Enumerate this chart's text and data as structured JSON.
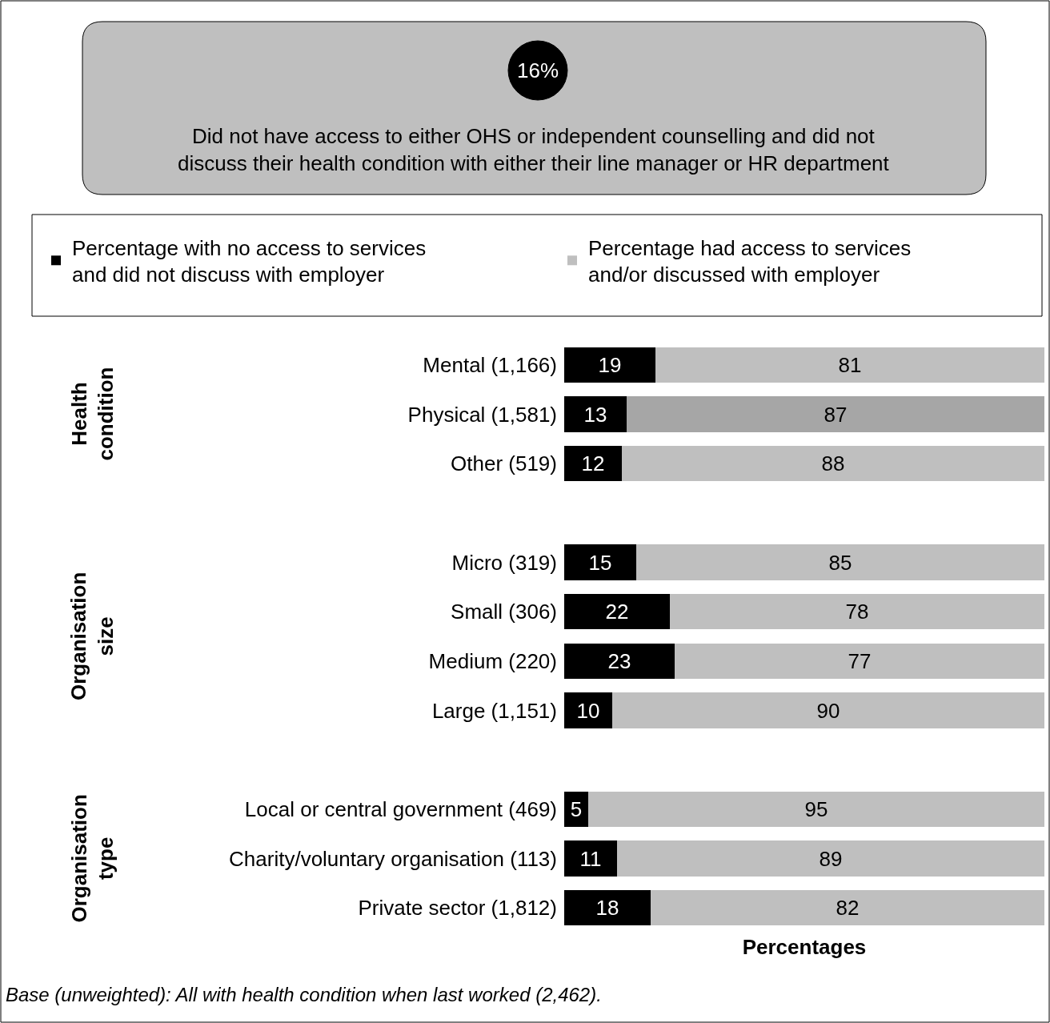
{
  "chart_data": {
    "type": "bar",
    "orientation": "horizontal",
    "stacked": true,
    "data_labels": true,
    "legend": "top",
    "tick_labels": "y",
    "xlabel": "Percentages",
    "xlim": [
      0,
      100
    ],
    "categories": [
      "Mental (1,166)",
      "Physical (1,581)",
      "Other (519)",
      null,
      "Micro (319)",
      "Small (306)",
      "Medium (220)",
      "Large (1,151)",
      null,
      "Local or central government (469)",
      "Charity/voluntary organisation (113)",
      "Private sector (1,812)"
    ],
    "series": [
      {
        "name": "Percentage with no access to services and did not discuss with employer",
        "color": "#000000",
        "values": [
          19,
          13,
          12,
          null,
          15,
          22,
          23,
          10,
          null,
          5,
          11,
          18
        ]
      },
      {
        "name": "Percentage had access to services and/or discussed with employer",
        "color": "#bfbfbf",
        "colors": [
          "#bfbfbf",
          "#a6a6a6",
          "#bfbfbf",
          null,
          "#bfbfbf",
          "#bfbfbf",
          "#bfbfbf",
          "#bfbfbf",
          null,
          "#bfbfbf",
          "#bfbfbf",
          "#bfbfbf"
        ],
        "values": [
          81,
          87,
          88,
          null,
          85,
          78,
          77,
          90,
          null,
          95,
          89,
          82
        ]
      }
    ],
    "annotations": [
      "16%",
      "Did not have access to either OHS or independent counselling and did not discuss their health condition with either their line manager or HR department",
      "Health condition",
      "Organisation size",
      "Organisation type",
      "Base (unweighted): All with health condition when last worked (2,462)."
    ]
  }
}
